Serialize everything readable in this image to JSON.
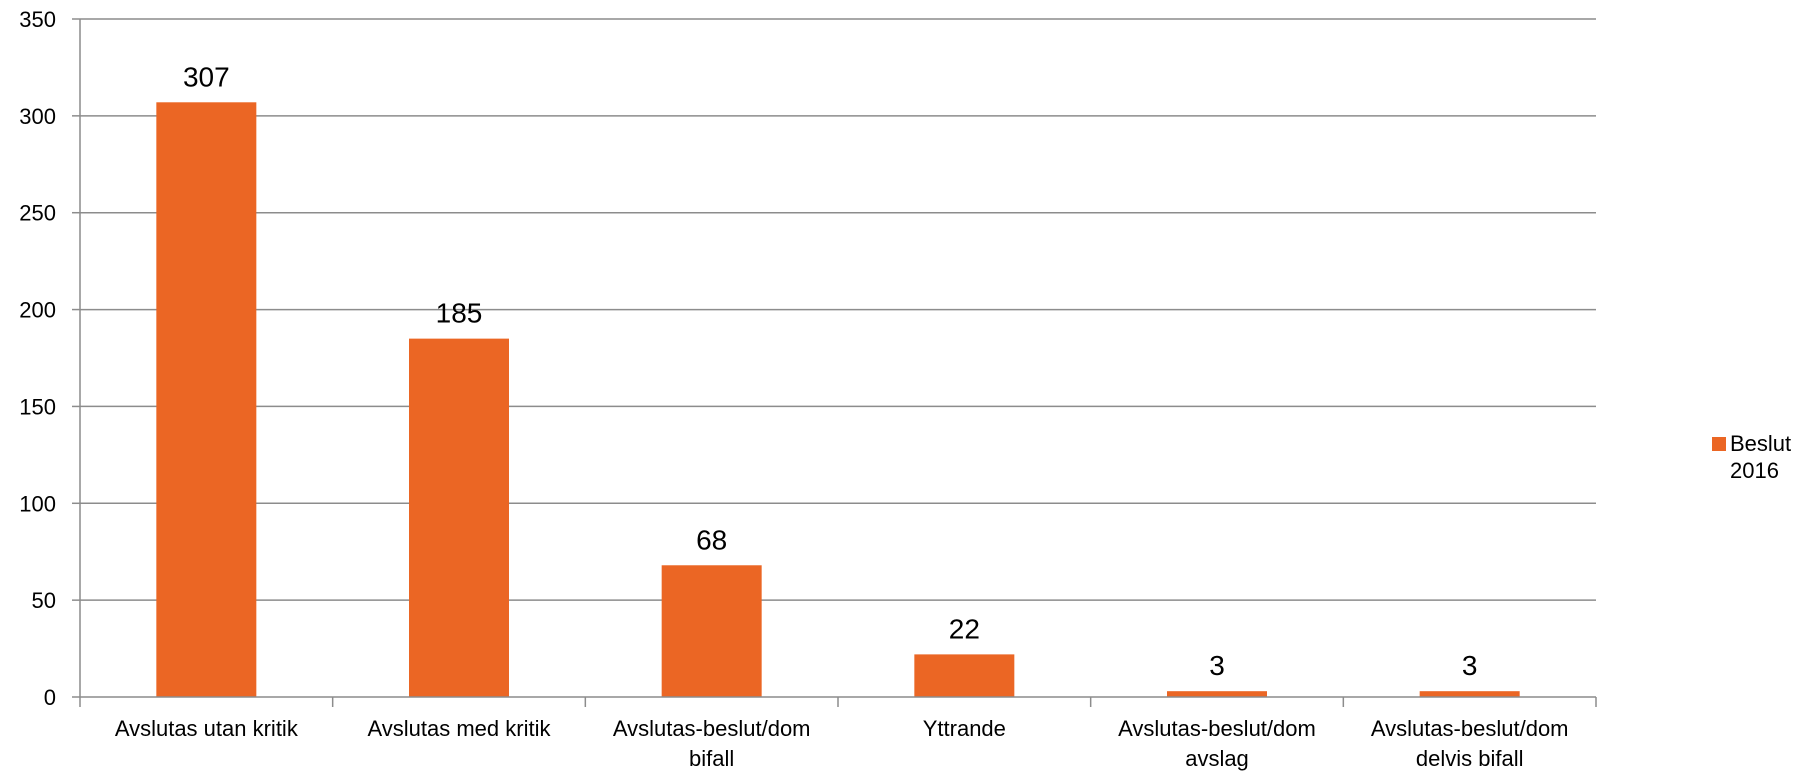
{
  "chart_data": {
    "type": "bar",
    "categories": [
      "Avslutas utan kritik",
      "Avslutas med kritik",
      "Avslutas-beslut/dom bifall",
      "Yttrande",
      "Avslutas-beslut/dom avslag",
      "Avslutas-beslut/dom delvis bifall"
    ],
    "category_lines": [
      [
        "Avslutas utan kritik"
      ],
      [
        "Avslutas med kritik"
      ],
      [
        "Avslutas-beslut/dom",
        "bifall"
      ],
      [
        "Yttrande"
      ],
      [
        "Avslutas-beslut/dom",
        "avslag"
      ],
      [
        "Avslutas-beslut/dom",
        "delvis bifall"
      ]
    ],
    "series": [
      {
        "name": "Beslut 2016",
        "name_lines": [
          "Beslut",
          "2016"
        ],
        "values": [
          307,
          185,
          68,
          22,
          3,
          3
        ],
        "color": "#EB6624"
      }
    ],
    "title": "",
    "xlabel": "",
    "ylabel": "",
    "ylim": [
      0,
      350
    ],
    "yticks": [
      0,
      50,
      100,
      150,
      200,
      250,
      300,
      350
    ],
    "grid": true,
    "gridline_color": "#8C8C8C",
    "legend_position": "right",
    "data_labels": true
  }
}
